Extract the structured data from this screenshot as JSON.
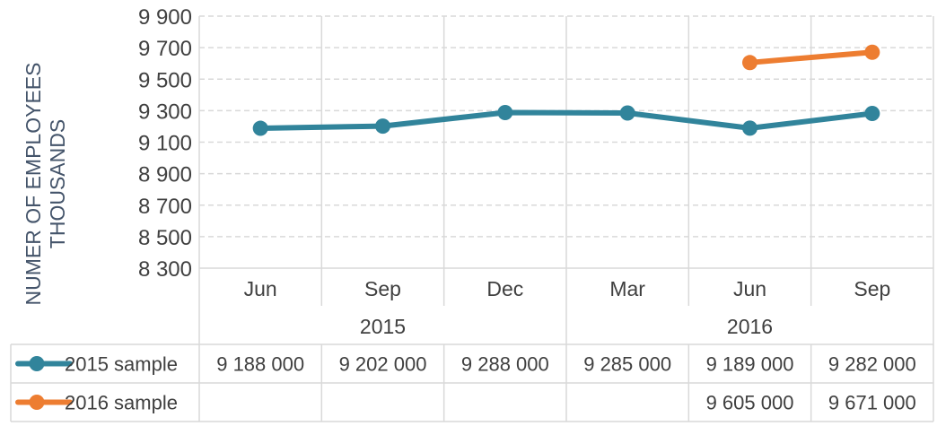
{
  "chart_data": {
    "type": "line",
    "ylabel": [
      "NUMER OF EMPLOYEES",
      "THOUSANDS"
    ],
    "ylim": [
      8300,
      9900
    ],
    "y_ticks": [
      "9 900",
      "9 700",
      "9 500",
      "9 300",
      "9 100",
      "8 900",
      "8 700",
      "8 500",
      "8 300"
    ],
    "y_tick_values": [
      9900,
      9700,
      9500,
      9300,
      9100,
      8900,
      8700,
      8500,
      8300
    ],
    "categories": [
      "Jun",
      "Sep",
      "Dec",
      "Mar",
      "Jun",
      "Sep"
    ],
    "year_groups": [
      {
        "label": "2015",
        "span": 3
      },
      {
        "label": "2016",
        "span": 3
      }
    ],
    "grid": true,
    "legend": "data table below chart",
    "series": [
      {
        "name": "2015 sample",
        "color": "#31849B",
        "values": [
          9188,
          9202,
          9288,
          9285,
          9189,
          9282
        ],
        "table_values": [
          "9 188 000",
          "9 202 000",
          "9 288 000",
          "9 285 000",
          "9 189 000",
          "9 282 000"
        ]
      },
      {
        "name": "2016 sample",
        "color": "#ED7D31",
        "values": [
          null,
          null,
          null,
          null,
          9605,
          9671
        ],
        "table_values": [
          "",
          "",
          "",
          "",
          "9 605 000",
          "9 671 000"
        ]
      }
    ]
  }
}
